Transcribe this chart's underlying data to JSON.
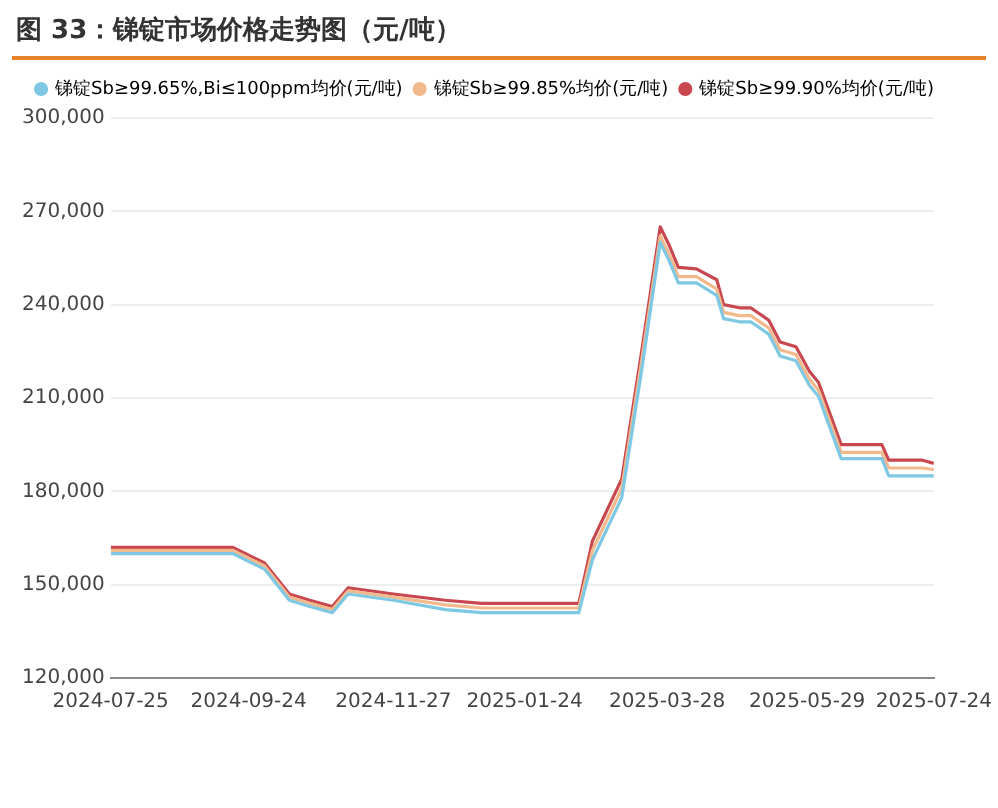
{
  "chart_data": {
    "type": "line",
    "title": "图 33：锑锭市场价格走势图（元/吨）",
    "x": [
      "2024-07-25",
      "2024-08-20",
      "2024-09-17",
      "2024-10-01",
      "2024-10-12",
      "2024-10-21",
      "2024-10-31",
      "2024-11-07",
      "2024-11-27",
      "2024-12-20",
      "2025-01-05",
      "2025-01-24",
      "2025-02-17",
      "2025-02-23",
      "2025-03-08",
      "2025-03-17",
      "2025-03-25",
      "2025-03-29",
      "2025-04-02",
      "2025-04-10",
      "2025-04-19",
      "2025-04-22",
      "2025-04-29",
      "2025-05-04",
      "2025-05-12",
      "2025-05-17",
      "2025-05-24",
      "2025-05-30",
      "2025-06-03",
      "2025-06-13",
      "2025-07-01",
      "2025-07-04",
      "2025-07-19",
      "2025-07-24"
    ],
    "series": [
      {
        "name": "锑锭Sb≥99.65%,Bi≤100ppm均价(元/吨)",
        "color": "#7ec8e3",
        "values": [
          160000,
          160000,
          160000,
          155000,
          145000,
          143000,
          141000,
          147000,
          145000,
          142000,
          141000,
          141000,
          141000,
          158000,
          178000,
          220000,
          260000,
          254000,
          247000,
          247000,
          243000,
          235500,
          234500,
          234500,
          230500,
          223500,
          222000,
          214000,
          210500,
          190500,
          190500,
          185000,
          185000,
          185000
        ]
      },
      {
        "name": "锑锭Sb≥99.85%均价(元/吨)",
        "color": "#f2b98c",
        "values": [
          161000,
          161000,
          161000,
          156000,
          146000,
          144000,
          142000,
          148000,
          146000,
          143500,
          142500,
          142500,
          142500,
          161000,
          181000,
          223000,
          262000,
          256000,
          249000,
          249000,
          245000,
          237500,
          236500,
          236500,
          232500,
          225500,
          224000,
          216000,
          212500,
          192500,
          192500,
          187500,
          187500,
          187000
        ]
      },
      {
        "name": "锑锭Sb≥99.90%均价(元/吨)",
        "color": "#c9474f",
        "values": [
          162000,
          162000,
          162000,
          157000,
          147000,
          145000,
          143000,
          149000,
          147000,
          145000,
          144000,
          144000,
          144000,
          164000,
          184000,
          226000,
          265000,
          259000,
          252000,
          251500,
          248000,
          240000,
          239000,
          239000,
          235000,
          228000,
          226500,
          218500,
          215000,
          195000,
          195000,
          190000,
          190000,
          189000
        ]
      }
    ],
    "xlim": [
      "2024-07-25",
      "2025-07-24"
    ],
    "xticks": [
      "2024-07-25",
      "2024-09-24",
      "2024-11-27",
      "2025-01-24",
      "2025-03-28",
      "2025-05-29",
      "2025-07-24"
    ],
    "ylim": [
      120000,
      300000
    ],
    "yticks": [
      {
        "value": 120000,
        "label": "120,000"
      },
      {
        "value": 150000,
        "label": "150,000"
      },
      {
        "value": 180000,
        "label": "180,000"
      },
      {
        "value": 210000,
        "label": "210,000"
      },
      {
        "value": 240000,
        "label": "240,000"
      },
      {
        "value": 270000,
        "label": "270,000"
      },
      {
        "value": 300000,
        "label": "300,000"
      }
    ],
    "grid": "y",
    "legend": "top",
    "marker": "none",
    "line_style": "solid"
  }
}
